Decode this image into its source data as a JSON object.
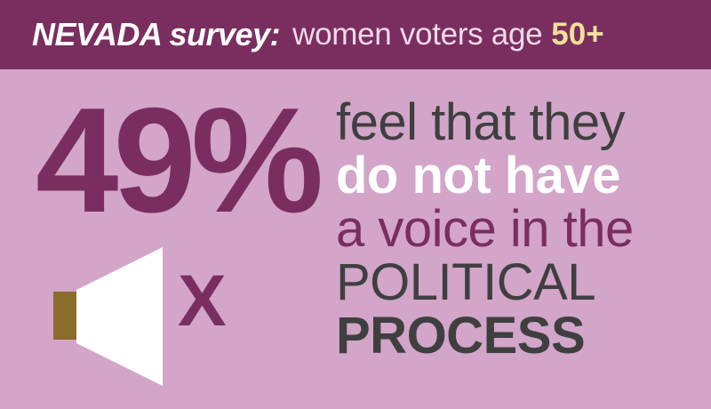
{
  "header": {
    "state": "NEVADA survey:",
    "audience": "women voters age",
    "age": "50+"
  },
  "stat": {
    "percent": "49%"
  },
  "statement": {
    "line1": "feel that they",
    "line2": "do not have",
    "line3": "a voice in the",
    "line4": "POLITICAL",
    "line5": "PROCESS"
  },
  "graphic": {
    "mark": "X",
    "icon": "megaphone-icon"
  },
  "colors": {
    "background": "#d2a5c9",
    "header_bg": "#7a2e5f",
    "plum": "#7a2e5f",
    "gold": "#8a6d2a",
    "dark_gray": "#3f3f3f"
  }
}
